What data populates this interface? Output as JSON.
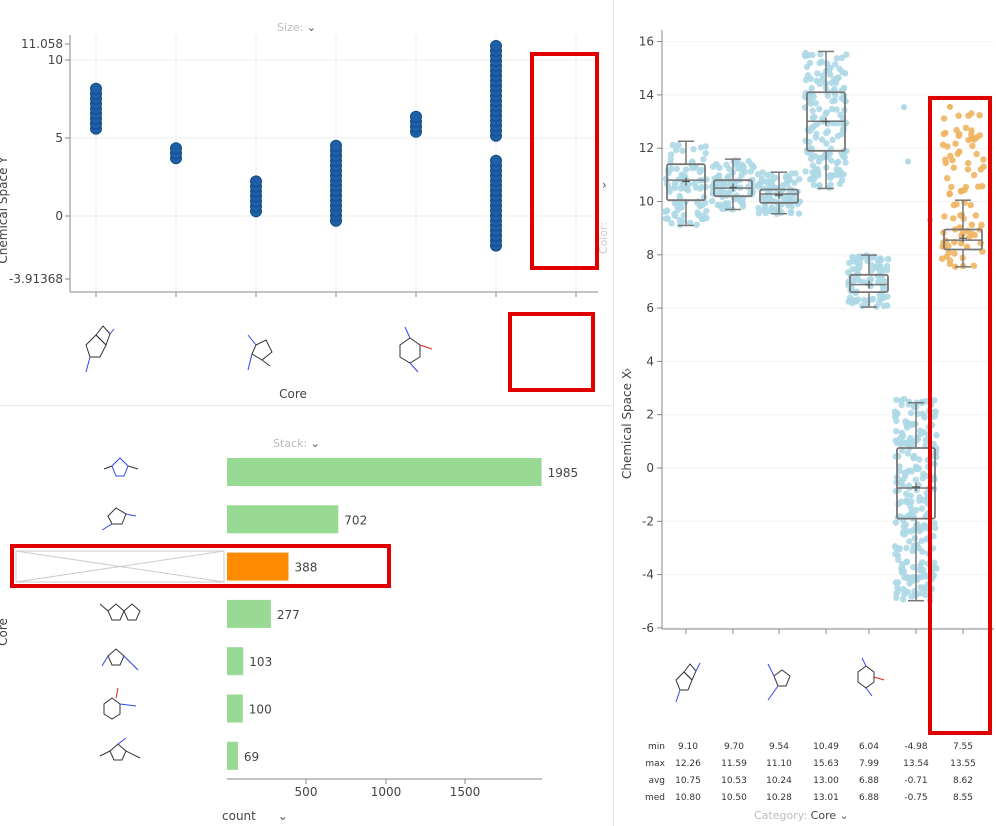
{
  "scatter": {
    "size_label": "Size:",
    "color_label": "Color:",
    "ylabel": "Chemical Space Y",
    "xlabel": "Core",
    "ytick_top": "11.058",
    "ytick_bottom": "-3.91368",
    "yticks": [
      "10",
      "5",
      "0"
    ]
  },
  "bar": {
    "stack_label": "Stack:",
    "ylabel": "Core",
    "xlabel": "count",
    "xticks": [
      "500",
      "1000",
      "1500"
    ]
  },
  "box": {
    "ylabel": "Chemical Space X",
    "category_label": "Category:",
    "category_value": "Core",
    "yticks": [
      "16",
      "14",
      "12",
      "10",
      "8",
      "6",
      "4",
      "2",
      "0",
      "-2",
      "-4",
      "-6"
    ],
    "stat_labels": [
      "min",
      "max",
      "avg",
      "med"
    ],
    "stats": [
      [
        "9.10",
        "12.26",
        "10.75",
        "10.80"
      ],
      [
        "9.70",
        "11.59",
        "10.53",
        "10.50"
      ],
      [
        "9.54",
        "11.10",
        "10.24",
        "10.28"
      ],
      [
        "10.49",
        "15.63",
        "13.00",
        "13.01"
      ],
      [
        "6.04",
        "7.99",
        "6.88",
        "6.88"
      ],
      [
        "-4.98",
        "13.54",
        "-0.71",
        "-0.75"
      ],
      [
        "7.55",
        "13.55",
        "8.62",
        "8.55"
      ]
    ]
  },
  "chart_data": [
    {
      "type": "scatter",
      "ylabel": "Chemical Space Y",
      "xlabel": "Core",
      "ylim": [
        -3.91368,
        11.058
      ],
      "series": [
        {
          "category": 1,
          "y_range": [
            5.6,
            8.2
          ]
        },
        {
          "category": 2,
          "y_range": [
            3.7,
            4.5
          ]
        },
        {
          "category": 3,
          "y_range": [
            0.3,
            2.3
          ]
        },
        {
          "category": 4,
          "y_range": [
            -0.3,
            4.8
          ]
        },
        {
          "category": 5,
          "y_range": [
            5.4,
            6.5
          ]
        },
        {
          "category": 6,
          "y_range": [
            -1.9,
            11.0
          ]
        }
      ]
    },
    {
      "type": "bar",
      "orientation": "horizontal",
      "xlabel": "count",
      "values": [
        1985,
        702,
        388,
        277,
        103,
        100,
        69
      ],
      "highlight_index": 2,
      "colors": {
        "bar": "#98d994",
        "highlight": "#ff8c00"
      }
    },
    {
      "type": "box",
      "ylabel": "Chemical Space X",
      "ylim": [
        -6,
        16.5
      ],
      "boxes": [
        {
          "min": 9.1,
          "max": 12.26,
          "avg": 10.75,
          "med": 10.8,
          "q1": 10.05,
          "q3": 11.4,
          "color": "#add8e6"
        },
        {
          "min": 9.7,
          "max": 11.59,
          "avg": 10.53,
          "med": 10.5,
          "q1": 10.2,
          "q3": 10.8,
          "color": "#add8e6"
        },
        {
          "min": 9.54,
          "max": 11.1,
          "avg": 10.24,
          "med": 10.28,
          "q1": 9.95,
          "q3": 10.45,
          "color": "#add8e6"
        },
        {
          "min": 10.49,
          "max": 15.63,
          "avg": 13.0,
          "med": 13.01,
          "q1": 11.9,
          "q3": 14.1,
          "color": "#add8e6"
        },
        {
          "min": 6.04,
          "max": 7.99,
          "avg": 6.88,
          "med": 6.88,
          "q1": 6.6,
          "q3": 7.25,
          "color": "#add8e6"
        },
        {
          "min": -4.98,
          "max": 13.54,
          "avg": -0.71,
          "med": -0.75,
          "q1": -1.9,
          "q3": 0.75,
          "color": "#add8e6"
        },
        {
          "min": 7.55,
          "max": 13.55,
          "avg": 8.62,
          "med": 8.55,
          "q1": 8.2,
          "q3": 8.95,
          "color": "#f0b460"
        }
      ]
    }
  ]
}
